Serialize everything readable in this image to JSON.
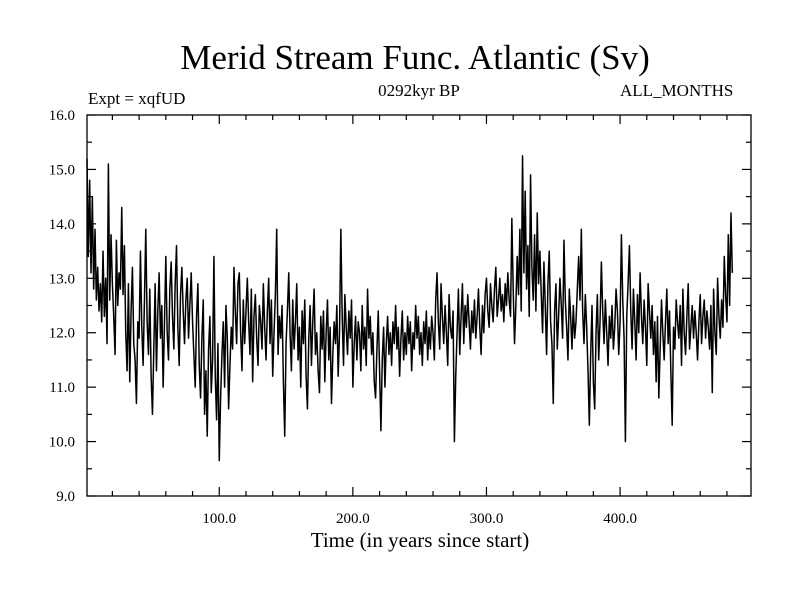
{
  "chart_data": {
    "type": "line",
    "title": "Merid Stream Func. Atlantic (Sv)",
    "left_label": "Expt = xqfUD",
    "subtitle": "0292kyr BP",
    "right_label": "ALL_MONTHS",
    "xlabel": "Time (in years since start)",
    "ylabel": "",
    "xlim": [
      1,
      498
    ],
    "ylim": [
      9.0,
      16.0
    ],
    "xticks": [
      100,
      200,
      300,
      400
    ],
    "xtick_labels": [
      "100.0",
      "200.0",
      "300.0",
      "400.0"
    ],
    "yticks": [
      9,
      10,
      11,
      12,
      13,
      14,
      15,
      16
    ],
    "ytick_labels": [
      "9.0",
      "10.0",
      "11.0",
      "12.0",
      "13.0",
      "14.0",
      "15.0",
      "16.0"
    ],
    "series": [
      {
        "name": "Meridional stream function",
        "x_start": 1,
        "x_step": 1,
        "values": [
          15.2,
          13.4,
          14.8,
          13.1,
          14.5,
          12.8,
          13.9,
          12.6,
          13.2,
          12.4,
          12.9,
          12.2,
          13.5,
          12.3,
          13.0,
          11.8,
          15.1,
          12.6,
          13.8,
          12.9,
          12.3,
          11.6,
          13.7,
          12.5,
          13.1,
          12.8,
          14.3,
          12.7,
          13.6,
          12.0,
          11.3,
          12.9,
          11.1,
          12.4,
          13.2,
          11.8,
          11.5,
          10.7,
          12.2,
          11.9,
          13.5,
          12.1,
          11.4,
          12.6,
          13.9,
          12.2,
          11.6,
          12.8,
          11.2,
          10.5,
          11.7,
          12.9,
          11.3,
          12.4,
          13.1,
          11.9,
          12.5,
          11.0,
          12.2,
          13.4,
          12.0,
          11.5,
          12.8,
          13.3,
          12.3,
          11.7,
          12.9,
          13.6,
          12.1,
          11.4,
          12.7,
          13.2,
          12.4,
          11.8,
          12.6,
          13.0,
          11.9,
          12.5,
          13.1,
          12.2,
          11.6,
          11.0,
          12.3,
          12.9,
          11.4,
          10.8,
          11.9,
          12.6,
          10.5,
          11.3,
          10.1,
          11.7,
          12.3,
          10.9,
          11.5,
          13.4,
          11.2,
          10.4,
          11.8,
          9.65,
          10.8,
          11.6,
          12.2,
          11.0,
          12.5,
          11.9,
          10.6,
          11.4,
          12.1,
          11.7,
          13.2,
          12.4,
          11.8,
          12.9,
          13.1,
          12.0,
          11.3,
          12.6,
          11.8,
          12.4,
          13.0,
          12.2,
          11.6,
          12.8,
          11.1,
          12.3,
          12.7,
          11.9,
          11.4,
          12.5,
          12.2,
          11.7,
          12.9,
          12.1,
          11.5,
          12.4,
          13.0,
          11.8,
          12.6,
          11.2,
          12.0,
          12.7,
          13.9,
          11.6,
          12.3,
          11.9,
          12.5,
          11.1,
          10.1,
          11.8,
          12.4,
          13.1,
          12.0,
          11.3,
          12.6,
          11.7,
          12.2,
          12.9,
          11.5,
          12.1,
          11.0,
          12.4,
          11.8,
          12.6,
          11.2,
          10.6,
          11.9,
          12.5,
          11.4,
          12.2,
          12.8,
          11.6,
          12.0,
          11.3,
          10.9,
          12.3,
          11.7,
          12.4,
          11.1,
          12.0,
          12.6,
          11.5,
          12.1,
          10.7,
          11.6,
          12.2,
          11.8,
          12.5,
          11.2,
          12.0,
          13.9,
          12.3,
          11.4,
          12.7,
          12.1,
          11.6,
          12.4,
          11.9,
          12.6,
          11.0,
          11.8,
          12.3,
          11.5,
          12.2,
          12.0,
          11.3,
          12.5,
          11.7,
          12.1,
          11.4,
          12.8,
          11.9,
          12.3,
          11.6,
          12.0,
          11.1,
          10.8,
          11.7,
          12.4,
          11.3,
          10.2,
          11.5,
          12.1,
          11.0,
          11.8,
          12.3,
          11.6,
          12.0,
          11.4,
          12.2,
          11.8,
          12.5,
          11.7,
          12.1,
          11.2,
          11.9,
          12.4,
          11.5,
          12.0,
          11.6,
          12.3,
          11.8,
          12.2,
          11.3,
          12.0,
          11.7,
          12.5,
          11.9,
          12.3,
          11.6,
          12.0,
          11.4,
          12.2,
          11.8,
          12.4,
          11.5,
          12.1,
          11.7,
          12.3,
          12.0,
          11.5,
          12.6,
          13.1,
          12.2,
          11.7,
          12.9,
          12.3,
          11.8,
          12.5,
          12.0,
          11.4,
          12.7,
          12.1,
          11.9,
          12.4,
          10.0,
          11.2,
          12.0,
          12.8,
          11.6,
          12.3,
          12.9,
          11.8,
          12.5,
          12.1,
          12.7,
          12.2,
          11.7,
          12.4,
          12.0,
          12.6,
          11.9,
          12.3,
          12.8,
          12.1,
          11.6,
          12.5,
          12.0,
          12.7,
          13.0,
          12.4,
          12.1,
          12.9,
          12.5,
          12.2,
          12.8,
          13.2,
          12.3,
          12.6,
          13.0,
          12.4,
          12.7,
          12.2,
          12.9,
          12.5,
          13.1,
          12.6,
          12.3,
          14.1,
          12.8,
          11.8,
          12.5,
          13.4,
          12.7,
          13.9,
          12.4,
          15.25,
          13.1,
          14.6,
          12.8,
          13.6,
          12.3,
          14.9,
          13.2,
          12.6,
          13.8,
          12.4,
          14.2,
          12.9,
          13.5,
          12.7,
          12.0,
          13.3,
          12.5,
          11.6,
          12.9,
          13.5,
          12.2,
          11.8,
          10.7,
          12.4,
          12.9,
          11.7,
          12.3,
          13.0,
          12.5,
          11.9,
          13.7,
          12.6,
          12.1,
          11.5,
          12.8,
          12.3,
          11.7,
          12.5,
          11.9,
          12.2,
          12.8,
          13.4,
          12.6,
          13.9,
          12.4,
          11.8,
          12.7,
          12.1,
          11.3,
          10.3,
          11.6,
          12.5,
          11.1,
          10.6,
          12.0,
          12.7,
          11.5,
          12.2,
          13.3,
          12.4,
          11.8,
          12.6,
          12.0,
          11.4,
          12.3,
          11.9,
          12.5,
          11.7,
          12.1,
          12.8,
          12.4,
          11.6,
          12.2,
          13.8,
          12.6,
          11.9,
          10.0,
          12.3,
          12.9,
          13.6,
          12.4,
          11.7,
          12.8,
          12.2,
          11.5,
          12.7,
          12.0,
          13.1,
          12.3,
          11.8,
          12.6,
          12.1,
          11.4,
          12.9,
          12.4,
          11.9,
          12.5,
          11.6,
          12.2,
          11.1,
          12.3,
          10.8,
          11.7,
          12.6,
          12.0,
          11.5,
          12.2,
          12.8,
          11.8,
          12.4,
          11.3,
          10.3,
          12.1,
          11.7,
          12.6,
          12.2,
          11.9,
          12.5,
          11.4,
          12.8,
          12.0,
          11.6,
          12.3,
          12.9,
          11.7,
          12.1,
          12.5,
          11.9,
          12.4,
          12.0,
          11.5,
          12.2,
          12.7,
          11.8,
          12.3,
          12.6,
          11.9,
          12.4,
          12.1,
          11.7,
          12.5,
          10.9,
          12.8,
          12.0,
          11.6,
          13.0,
          12.3,
          11.9,
          12.6,
          12.1,
          13.4,
          12.7,
          12.2,
          13.8,
          12.5,
          14.2,
          13.1
        ]
      }
    ]
  }
}
